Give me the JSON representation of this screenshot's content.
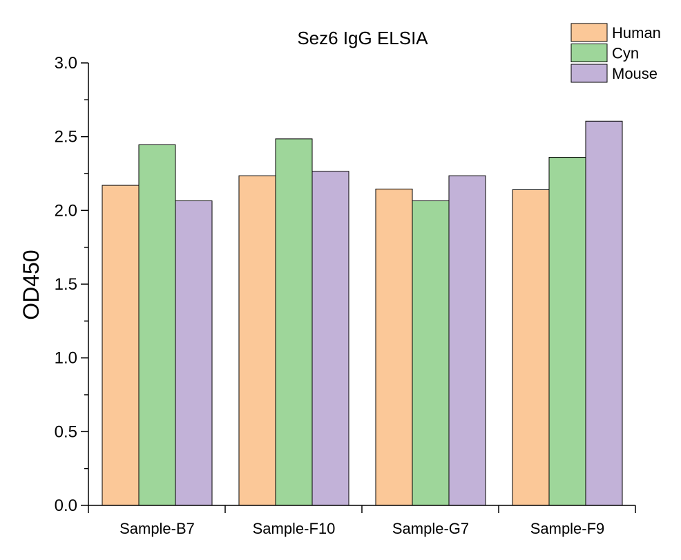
{
  "chart_data": {
    "type": "bar",
    "title": "Sez6 IgG ELSIA",
    "xlabel": "",
    "ylabel": "OD450",
    "ylim": [
      0,
      3.0
    ],
    "yticks": [
      "0.0",
      "0.5",
      "1.0",
      "1.5",
      "2.0",
      "2.5",
      "3.0"
    ],
    "categories": [
      "Sample-B7",
      "Sample-F10",
      "Sample-G7",
      "Sample-F9"
    ],
    "series": [
      {
        "name": "Human",
        "color": "#FBC898",
        "values": [
          2.17,
          2.235,
          2.145,
          2.14
        ]
      },
      {
        "name": "Cyn",
        "color": "#9ED69A",
        "values": [
          2.445,
          2.485,
          2.065,
          2.36
        ]
      },
      {
        "name": "Mouse",
        "color": "#C2B2D8",
        "values": [
          2.065,
          2.265,
          2.235,
          2.605
        ]
      }
    ],
    "grid": false,
    "legend": "top-right"
  }
}
